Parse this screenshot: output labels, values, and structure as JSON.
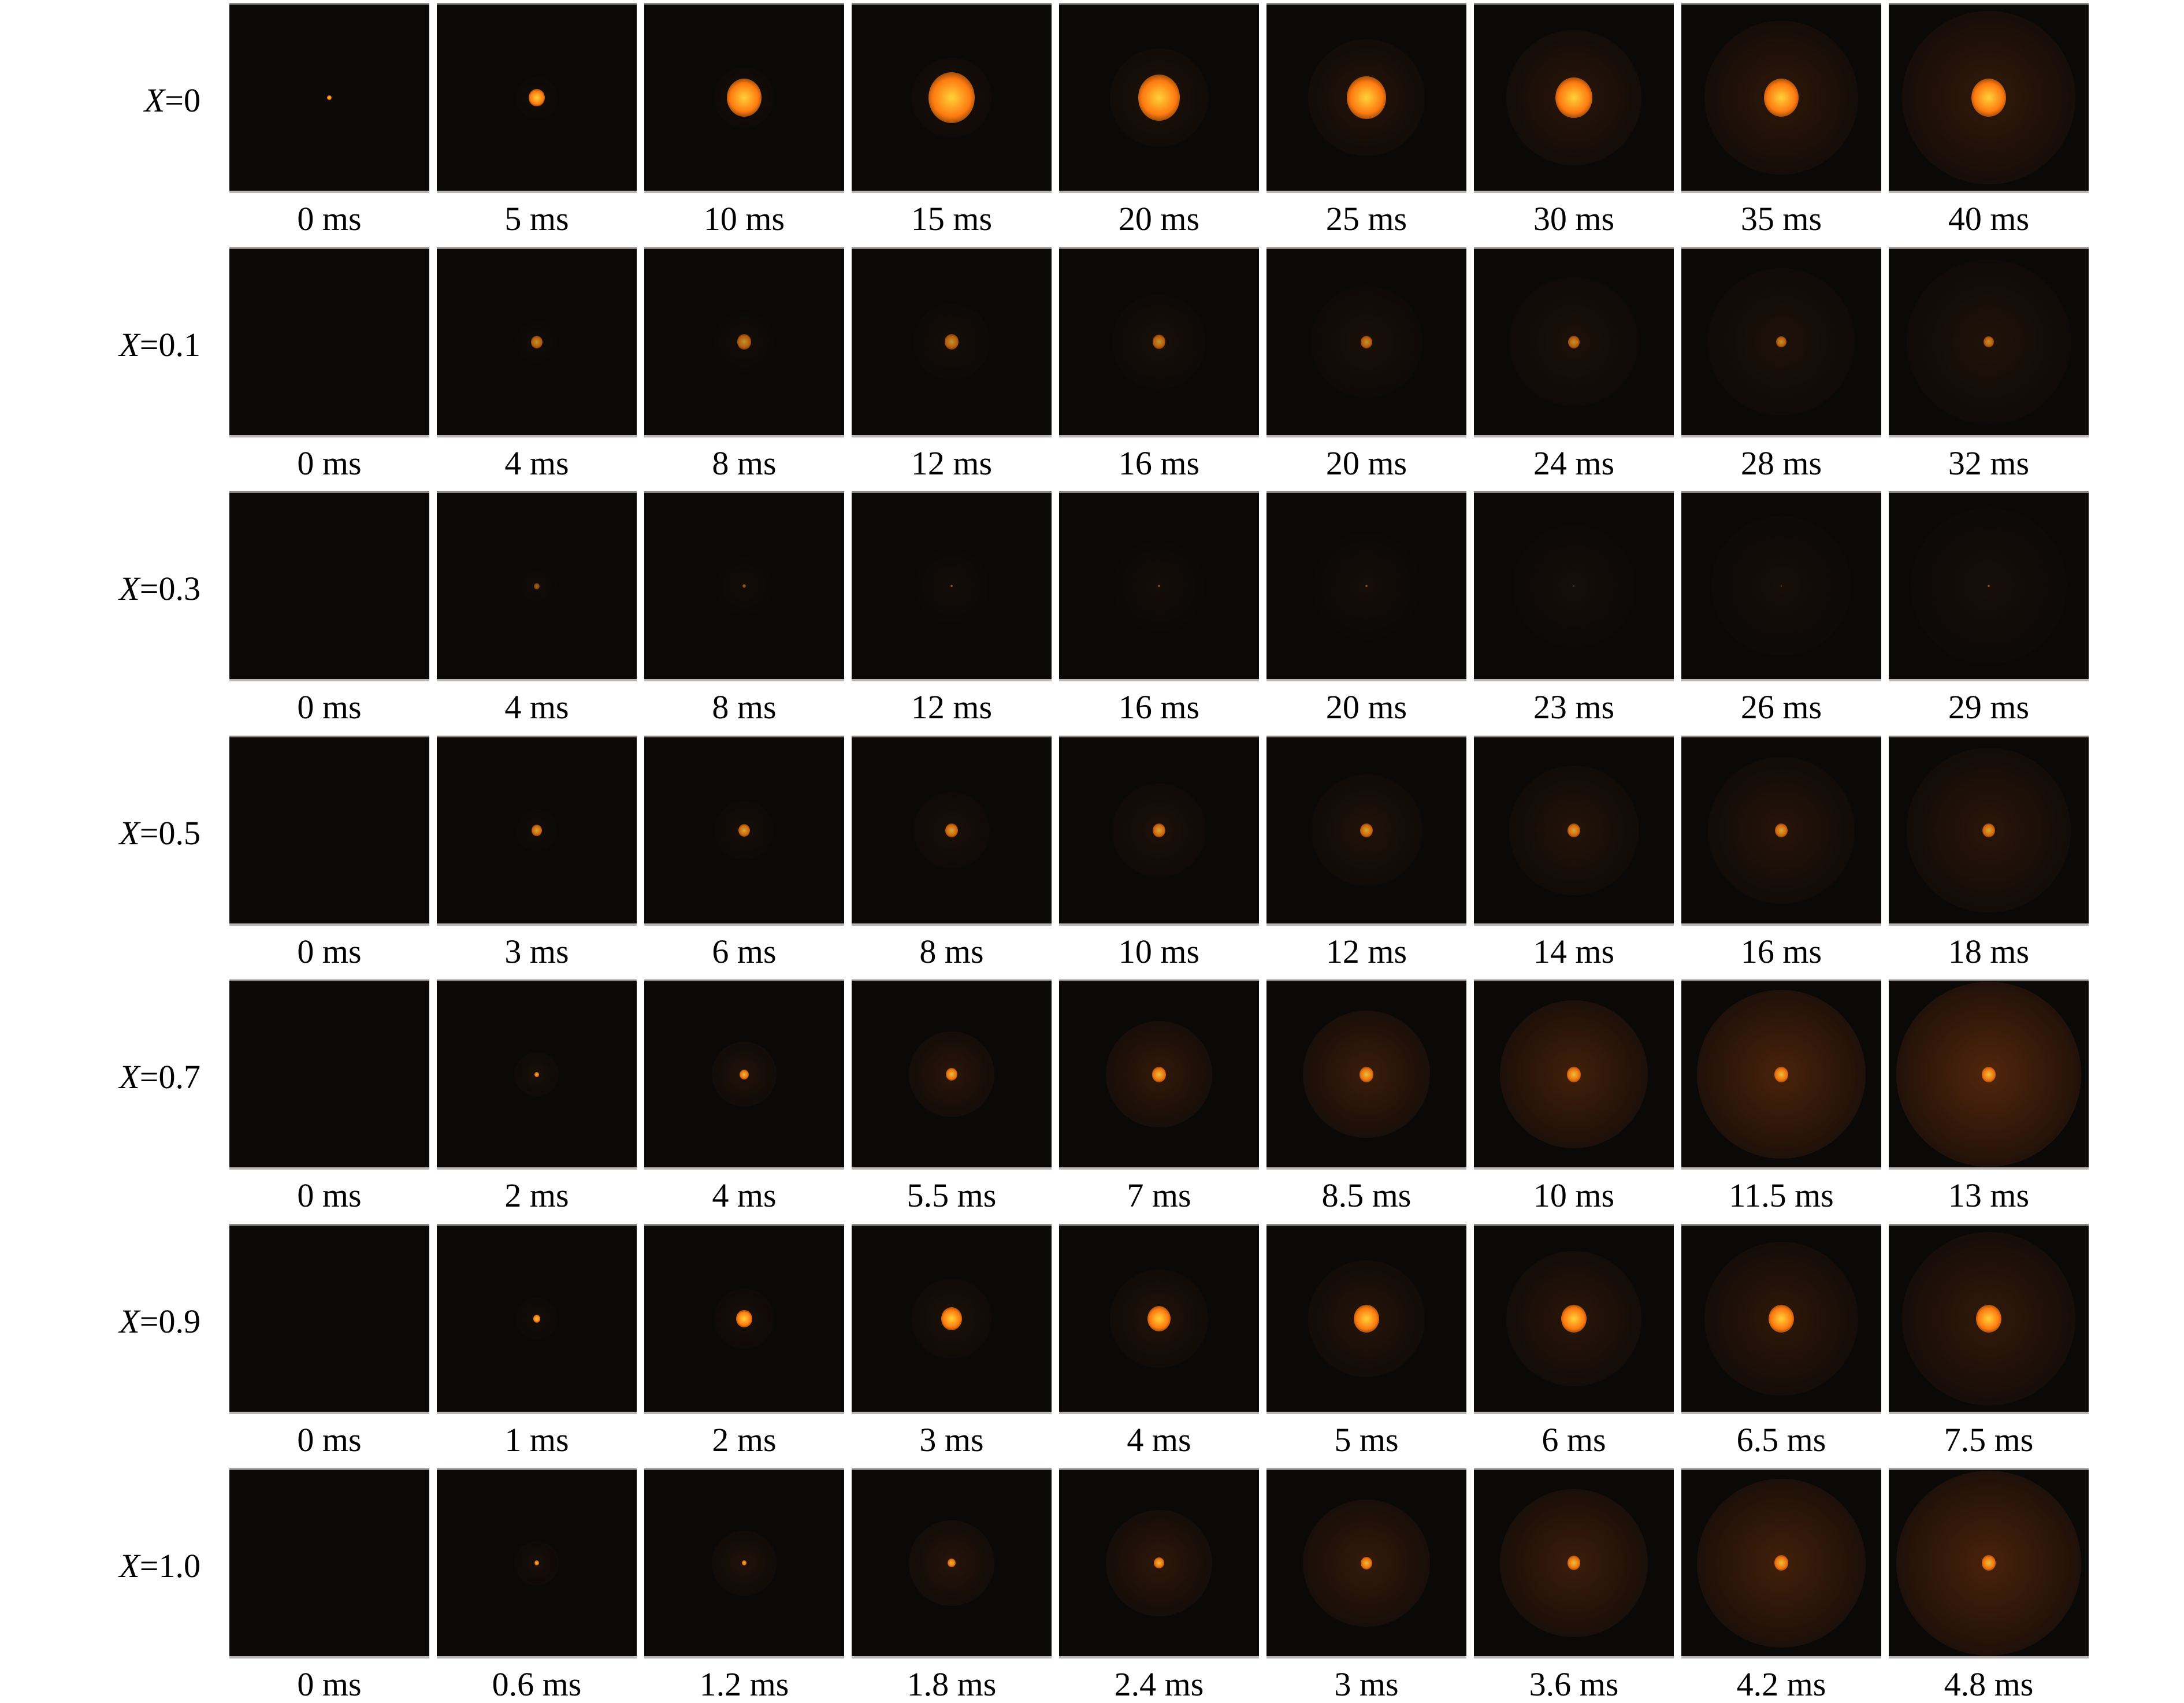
{
  "rows": [
    {
      "label_var": "X",
      "label_val": "=0",
      "times": [
        "0 ms",
        "5 ms",
        "10 ms",
        "15 ms",
        "20 ms",
        "25 ms",
        "30 ms",
        "35 ms",
        "40 ms"
      ]
    },
    {
      "label_var": "X",
      "label_val": "=0.1",
      "times": [
        "0 ms",
        "4 ms",
        "8 ms",
        "12 ms",
        "16 ms",
        "20 ms",
        "24 ms",
        "28 ms",
        "32 ms"
      ]
    },
    {
      "label_var": "X",
      "label_val": "=0.3",
      "times": [
        "0 ms",
        "4 ms",
        "8 ms",
        "12 ms",
        "16 ms",
        "20 ms",
        "23 ms",
        "26 ms",
        "29 ms"
      ]
    },
    {
      "label_var": "X",
      "label_val": "=0.5",
      "times": [
        "0 ms",
        "3 ms",
        "6 ms",
        "8 ms",
        "10 ms",
        "12 ms",
        "14 ms",
        "16 ms",
        "18 ms"
      ]
    },
    {
      "label_var": "X",
      "label_val": "=0.7",
      "times": [
        "0 ms",
        "2 ms",
        "4 ms",
        "5.5 ms",
        "7 ms",
        "8.5 ms",
        "10 ms",
        "11.5 ms",
        "13 ms"
      ]
    },
    {
      "label_var": "X",
      "label_val": "=0.9",
      "times": [
        "0 ms",
        "1 ms",
        "2 ms",
        "3 ms",
        "4 ms",
        "5 ms",
        "6 ms",
        "6.5 ms",
        "7.5 ms"
      ]
    },
    {
      "label_var": "X",
      "label_val": "=1.0",
      "times": [
        "0 ms",
        "0.6 ms",
        "1.2 ms",
        "1.8 ms",
        "2.4 ms",
        "3 ms",
        "3.6 ms",
        "4.2 ms",
        "4.8 ms"
      ]
    }
  ],
  "colors": {
    "panel_bg": "#0b0908",
    "flame_core": "#ffd23a",
    "flame_mid": "#ff7a10",
    "flame_halo": "#7a3208"
  }
}
